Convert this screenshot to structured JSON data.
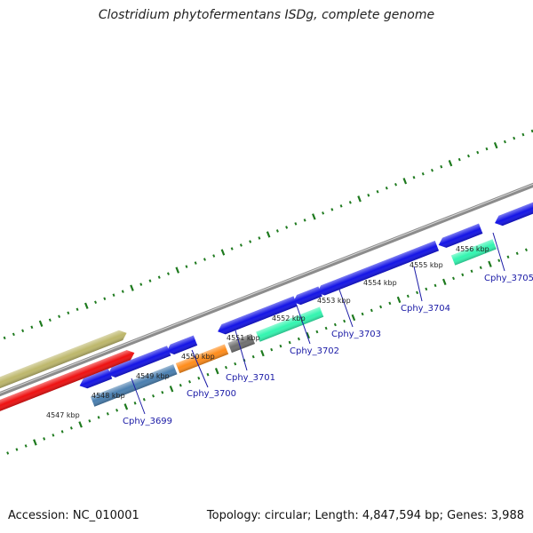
{
  "title": "Clostridium phytofermentans ISDg, complete genome",
  "footer": {
    "accession": "Accession: NC_010001",
    "stats": "Topology: circular; Length: 4,847,594 bp; Genes: 3,988"
  },
  "kbp_labels": [
    "4547 kbp",
    "4548 kbp",
    "4549 kbp",
    "4550 kbp",
    "4551 kbp",
    "4552 kbp",
    "4553 kbp",
    "4554 kbp",
    "4555 kbp",
    "4556 kbp"
  ],
  "gene_labels": [
    "Cphy_3699",
    "Cphy_3700",
    "Cphy_3701",
    "Cphy_3702",
    "Cphy_3703",
    "Cphy_3704",
    "Cphy_3705"
  ],
  "colors": {
    "forward_gene": "#1414e6",
    "backbone": "#8c8c8c",
    "tick": "#1e7a1e",
    "label": "#1a1aa6",
    "olive": "#bdb76b",
    "red": "#ee1111",
    "steel": "#4a7fb0",
    "orange": "#ff8c1a",
    "gray": "#707070",
    "aqua": "#33f5b0"
  }
}
